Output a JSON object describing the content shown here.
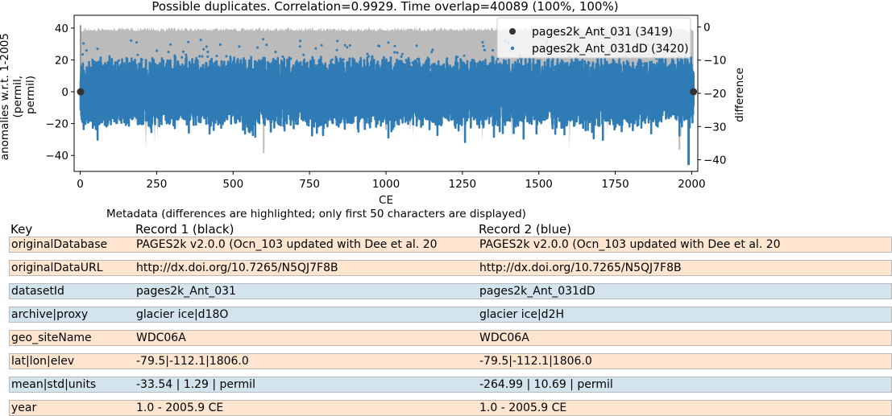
{
  "chart_data": {
    "type": "scatter",
    "title": "Possible duplicates. Correlation=0.9929. Time overlap=40089 (100%, 100%)",
    "xlabel": "CE",
    "ylabel_lines": [
      "anomalies w.r.t. 1-2005",
      "(permil,",
      "permil)"
    ],
    "ylabel2": "difference",
    "xlim": [
      -20,
      2020
    ],
    "ylim": [
      -50,
      48
    ],
    "ylim2": [
      -43.5,
      3.5
    ],
    "xticks": [
      0,
      250,
      500,
      750,
      1000,
      1250,
      1500,
      1750,
      2000
    ],
    "yticks": [
      -40,
      -20,
      0,
      20,
      40
    ],
    "yticks2": [
      -40,
      -30,
      -20,
      -10,
      0
    ],
    "grid": false,
    "legend_position": "top-right",
    "colors": {
      "record1": "#333333",
      "record2": "#2f7bb5",
      "difference": "#bbbbbb",
      "difference_dark": "#999999"
    },
    "series": [
      {
        "name": "pages2k_Ant_031 (3419)",
        "count": 3419,
        "x_range": [
          1.0,
          2005.9
        ],
        "y_range": [
          -33,
          33
        ]
      },
      {
        "name": "pages2k_Ant_031dD (3420)",
        "count": 3420,
        "x_range": [
          1.0,
          2005.9
        ],
        "y_range": [
          -46,
          33
        ]
      },
      {
        "name": "difference",
        "axis": "right",
        "x_range": [
          1.0,
          2005.9
        ],
        "y_range": [
          -38,
          0
        ]
      }
    ]
  },
  "metadata": {
    "caption": "Metadata (differences are highlighted; only first 50 characters are displayed)",
    "headers": [
      "Key",
      "Record 1 (black)",
      "Record 2 (blue)"
    ],
    "rows": [
      {
        "key": "originalDatabase",
        "r1": "PAGES2k v2.0.0 (Ocn_103 updated with Dee et al. 20",
        "r2": "PAGES2k v2.0.0 (Ocn_103 updated with Dee et al. 20",
        "highlight": true
      },
      {
        "key": "originalDataURL",
        "r1": "http://dx.doi.org/10.7265/N5QJ7F8B",
        "r2": "http://dx.doi.org/10.7265/N5QJ7F8B",
        "highlight": true
      },
      {
        "key": "datasetId",
        "r1": "pages2k_Ant_031",
        "r2": "pages2k_Ant_031dD",
        "highlight": false
      },
      {
        "key": "archive|proxy",
        "r1": "glacier ice|d18O",
        "r2": "glacier ice|d2H",
        "highlight": false
      },
      {
        "key": "geo_siteName",
        "r1": "WDC06A",
        "r2": "WDC06A",
        "highlight": true
      },
      {
        "key": "lat|lon|elev",
        "r1": "-79.5|-112.1|1806.0",
        "r2": "-79.5|-112.1|1806.0",
        "highlight": true
      },
      {
        "key": "mean|std|units",
        "r1": "-33.54 | 1.29 | permil",
        "r2": "-264.99 | 10.69 | permil",
        "highlight": false
      },
      {
        "key": "year",
        "r1": "1.0 - 2005.9 CE",
        "r2": "1.0 - 2005.9 CE",
        "highlight": true
      }
    ]
  }
}
